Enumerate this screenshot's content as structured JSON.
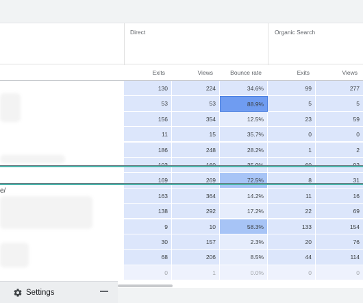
{
  "groups": [
    {
      "label": "Direct"
    },
    {
      "label": "Organic Search"
    }
  ],
  "columns": {
    "direct_exits": "Exits",
    "direct_views": "Views",
    "direct_bounce": "Bounce rate",
    "organic_exits": "Exits",
    "organic_views": "Views"
  },
  "left_fragment": "e/",
  "rows": [
    {
      "exits": "130",
      "views": "224",
      "bounce": "34.6%",
      "bounce_level": 0.346,
      "o_exits": "99",
      "o_views": "277"
    },
    {
      "exits": "53",
      "views": "53",
      "bounce": "88.9%",
      "bounce_level": 0.889,
      "o_exits": "5",
      "o_views": "5"
    },
    {
      "exits": "156",
      "views": "354",
      "bounce": "12.5%",
      "bounce_level": 0.125,
      "o_exits": "23",
      "o_views": "59"
    },
    {
      "exits": "11",
      "views": "15",
      "bounce": "35.7%",
      "bounce_level": 0.357,
      "o_exits": "0",
      "o_views": "0"
    },
    {
      "exits": "186",
      "views": "248",
      "bounce": "28.2%",
      "bounce_level": 0.282,
      "o_exits": "1",
      "o_views": "2"
    },
    {
      "exits": "103",
      "views": "160",
      "bounce": "35.9%",
      "bounce_level": 0.359,
      "o_exits": "60",
      "o_views": "92"
    },
    {
      "exits": "169",
      "views": "269",
      "bounce": "72.5%",
      "bounce_level": 0.725,
      "o_exits": "8",
      "o_views": "31"
    },
    {
      "exits": "163",
      "views": "364",
      "bounce": "14.2%",
      "bounce_level": 0.142,
      "o_exits": "11",
      "o_views": "16"
    },
    {
      "exits": "138",
      "views": "292",
      "bounce": "17.2%",
      "bounce_level": 0.172,
      "o_exits": "22",
      "o_views": "69"
    },
    {
      "exits": "9",
      "views": "10",
      "bounce": "58.3%",
      "bounce_level": 0.583,
      "o_exits": "133",
      "o_views": "154"
    },
    {
      "exits": "30",
      "views": "157",
      "bounce": "2.3%",
      "bounce_level": 0.023,
      "o_exits": "20",
      "o_views": "76"
    },
    {
      "exits": "68",
      "views": "206",
      "bounce": "8.5%",
      "bounce_level": 0.085,
      "o_exits": "44",
      "o_views": "114"
    },
    {
      "exits": "0",
      "views": "1",
      "bounce": "0.0%",
      "bounce_level": 0.0,
      "o_exits": "0",
      "o_views": "0",
      "faded": true
    }
  ],
  "colors": {
    "base_cell": "#dce6fb",
    "light_cell": "#e6edfc",
    "strong_bounce": "#6f9cf1",
    "mid_bounce": "#a7c4f6",
    "highlight_border": "#4db6ac"
  },
  "settings": {
    "label": "Settings",
    "icon": "gear-icon",
    "minimize_icon": "minimize-icon"
  }
}
